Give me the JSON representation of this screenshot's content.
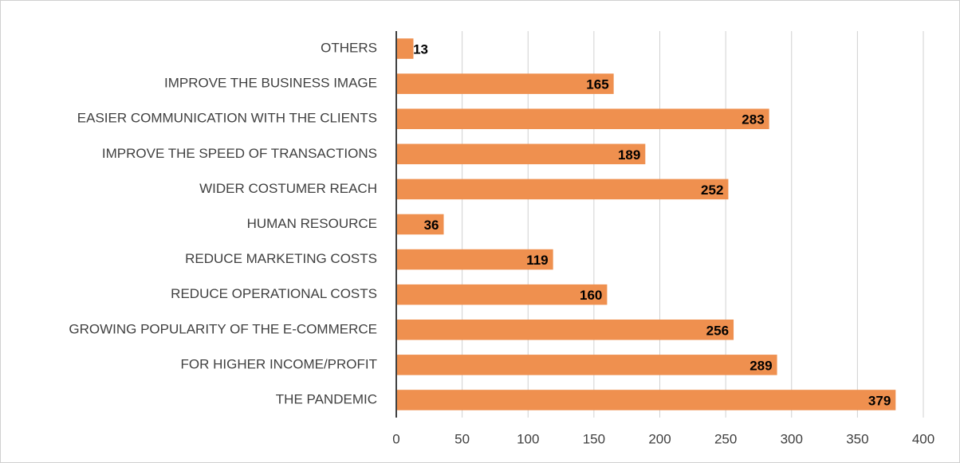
{
  "chart_data": {
    "type": "bar",
    "orientation": "horizontal",
    "categories": [
      "OTHERS",
      "IMPROVE THE BUSINESS IMAGE",
      "EASIER COMMUNICATION WITH THE CLIENTS",
      "IMPROVE THE SPEED OF TRANSACTIONS",
      "WIDER COSTUMER REACH",
      "HUMAN RESOURCE",
      "REDUCE MARKETING COSTS",
      "REDUCE OPERATIONAL COSTS",
      "GROWING POPULARITY OF THE E-COMMERCE",
      "FOR HIGHER INCOME/PROFIT",
      "THE PANDEMIC"
    ],
    "values": [
      13,
      165,
      283,
      189,
      252,
      36,
      119,
      160,
      256,
      289,
      379
    ],
    "color": "#ef904f",
    "xlim": [
      0,
      400
    ],
    "xticks": [
      0,
      50,
      100,
      150,
      200,
      250,
      300,
      350,
      400
    ],
    "grid": true
  }
}
